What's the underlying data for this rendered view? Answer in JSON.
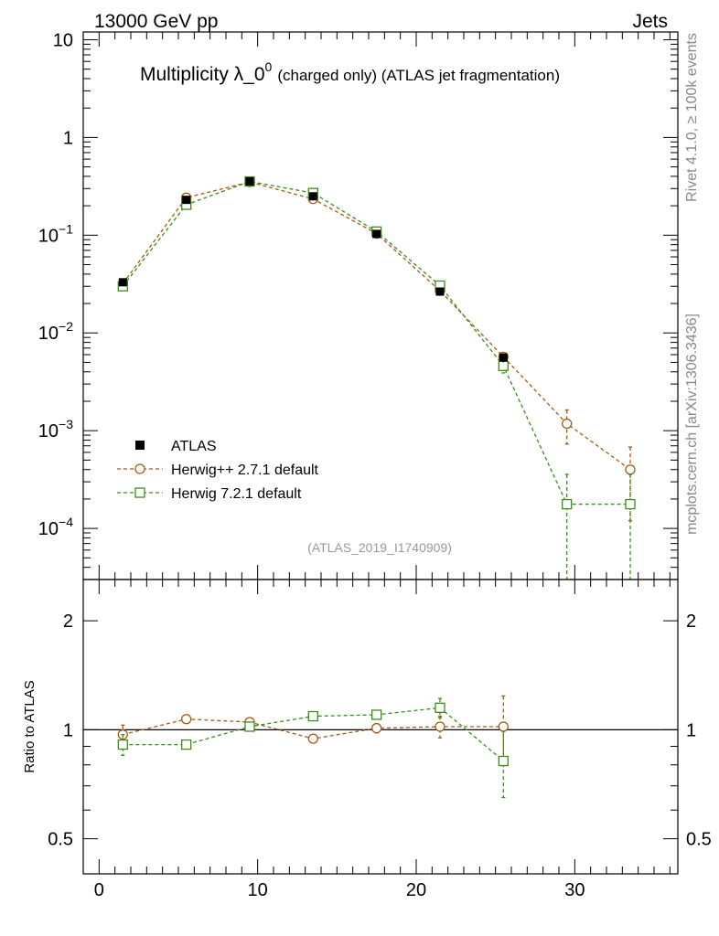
{
  "header": {
    "energy_label": "13000 GeV pp",
    "category_label": "Jets"
  },
  "side_labels": {
    "rivet": "Rivet 4.1.0, ≥ 100k events",
    "mcplots": "mcplots.cern.ch [arXiv:1306.3436]"
  },
  "chart_data": {
    "type": "scatter",
    "title": {
      "main": "Multiplicity λ_0",
      "superscript": "0",
      "suffix": "(charged only) (ATLAS jet fragmentation)"
    },
    "analysis_tag": "(ATLAS_2019_I1740909)",
    "x": [
      1.5,
      5.5,
      9.5,
      13.5,
      17.5,
      21.5,
      25.5,
      29.5,
      33.5
    ],
    "xlim": [
      -1,
      36.5
    ],
    "x_ticks": [
      "0",
      "10",
      "20",
      "30"
    ],
    "main_panel": {
      "yscale": "log",
      "ylim": [
        3e-05,
        12
      ],
      "y_ticks": [
        {
          "value": 10,
          "label": "10"
        },
        {
          "value": 1,
          "label": "1"
        },
        {
          "value": 0.1,
          "base": "10",
          "exp": "−1"
        },
        {
          "value": 0.01,
          "base": "10",
          "exp": "−2"
        },
        {
          "value": 0.001,
          "base": "10",
          "exp": "−3"
        },
        {
          "value": 0.0001,
          "base": "10",
          "exp": "−4"
        }
      ]
    },
    "ratio_panel": {
      "ylabel": "Ratio to ATLAS",
      "yscale": "log",
      "ylim": [
        0.4,
        2.6
      ],
      "y_ticks": [
        {
          "value": 2,
          "label": "2"
        },
        {
          "value": 1,
          "label": "1"
        },
        {
          "value": 0.5,
          "label": "0.5"
        }
      ]
    },
    "series": [
      {
        "name": "ATLAS",
        "color": "#000000",
        "marker": "filled-square",
        "values": [
          0.033,
          0.23,
          0.355,
          0.25,
          0.103,
          0.0265,
          0.0056,
          null,
          null
        ],
        "errors": [
          0.002,
          0.01,
          0.015,
          0.01,
          0.005,
          0.0015,
          0.0006,
          null,
          null
        ]
      },
      {
        "name": "Herwig++ 2.7.1 default",
        "color": "#a65a12",
        "marker": "open-circle",
        "values": [
          0.032,
          0.242,
          0.35,
          0.235,
          0.104,
          0.027,
          0.0057,
          0.00118,
          0.0004
        ],
        "err_low": [
          0.001,
          0.003,
          0.003,
          0.002,
          0.001,
          0.0005,
          0.0003,
          0.00045,
          0.00028
        ],
        "err_high": [
          0.001,
          0.003,
          0.003,
          0.002,
          0.001,
          0.0005,
          0.0003,
          0.00045,
          0.00028
        ],
        "ratio": [
          0.97,
          1.07,
          1.05,
          0.945,
          1.01,
          1.02,
          1.02,
          null,
          null
        ],
        "ratio_err": [
          0.06,
          0.01,
          0.01,
          0.01,
          0.03,
          0.07,
          0.22,
          null,
          null
        ]
      },
      {
        "name": "Herwig 7.2.1 default",
        "color": "#3a8f18",
        "marker": "open-square",
        "values": [
          0.03,
          0.205,
          0.355,
          0.27,
          0.109,
          0.0305,
          0.0046,
          0.000177,
          0.000177
        ],
        "err_low": [
          0.001,
          0.003,
          0.003,
          0.002,
          0.001,
          0.0006,
          0.0007,
          0.000177,
          0.000177
        ],
        "err_high": [
          0.001,
          0.003,
          0.003,
          0.002,
          0.001,
          0.0006,
          0.0007,
          0.00018,
          0.00018
        ],
        "ratio": [
          0.91,
          0.91,
          1.02,
          1.09,
          1.1,
          1.15,
          0.82,
          null,
          null
        ],
        "ratio_err": [
          0.06,
          0.01,
          0.01,
          0.01,
          0.03,
          0.07,
          0.17,
          null,
          null
        ]
      }
    ]
  }
}
